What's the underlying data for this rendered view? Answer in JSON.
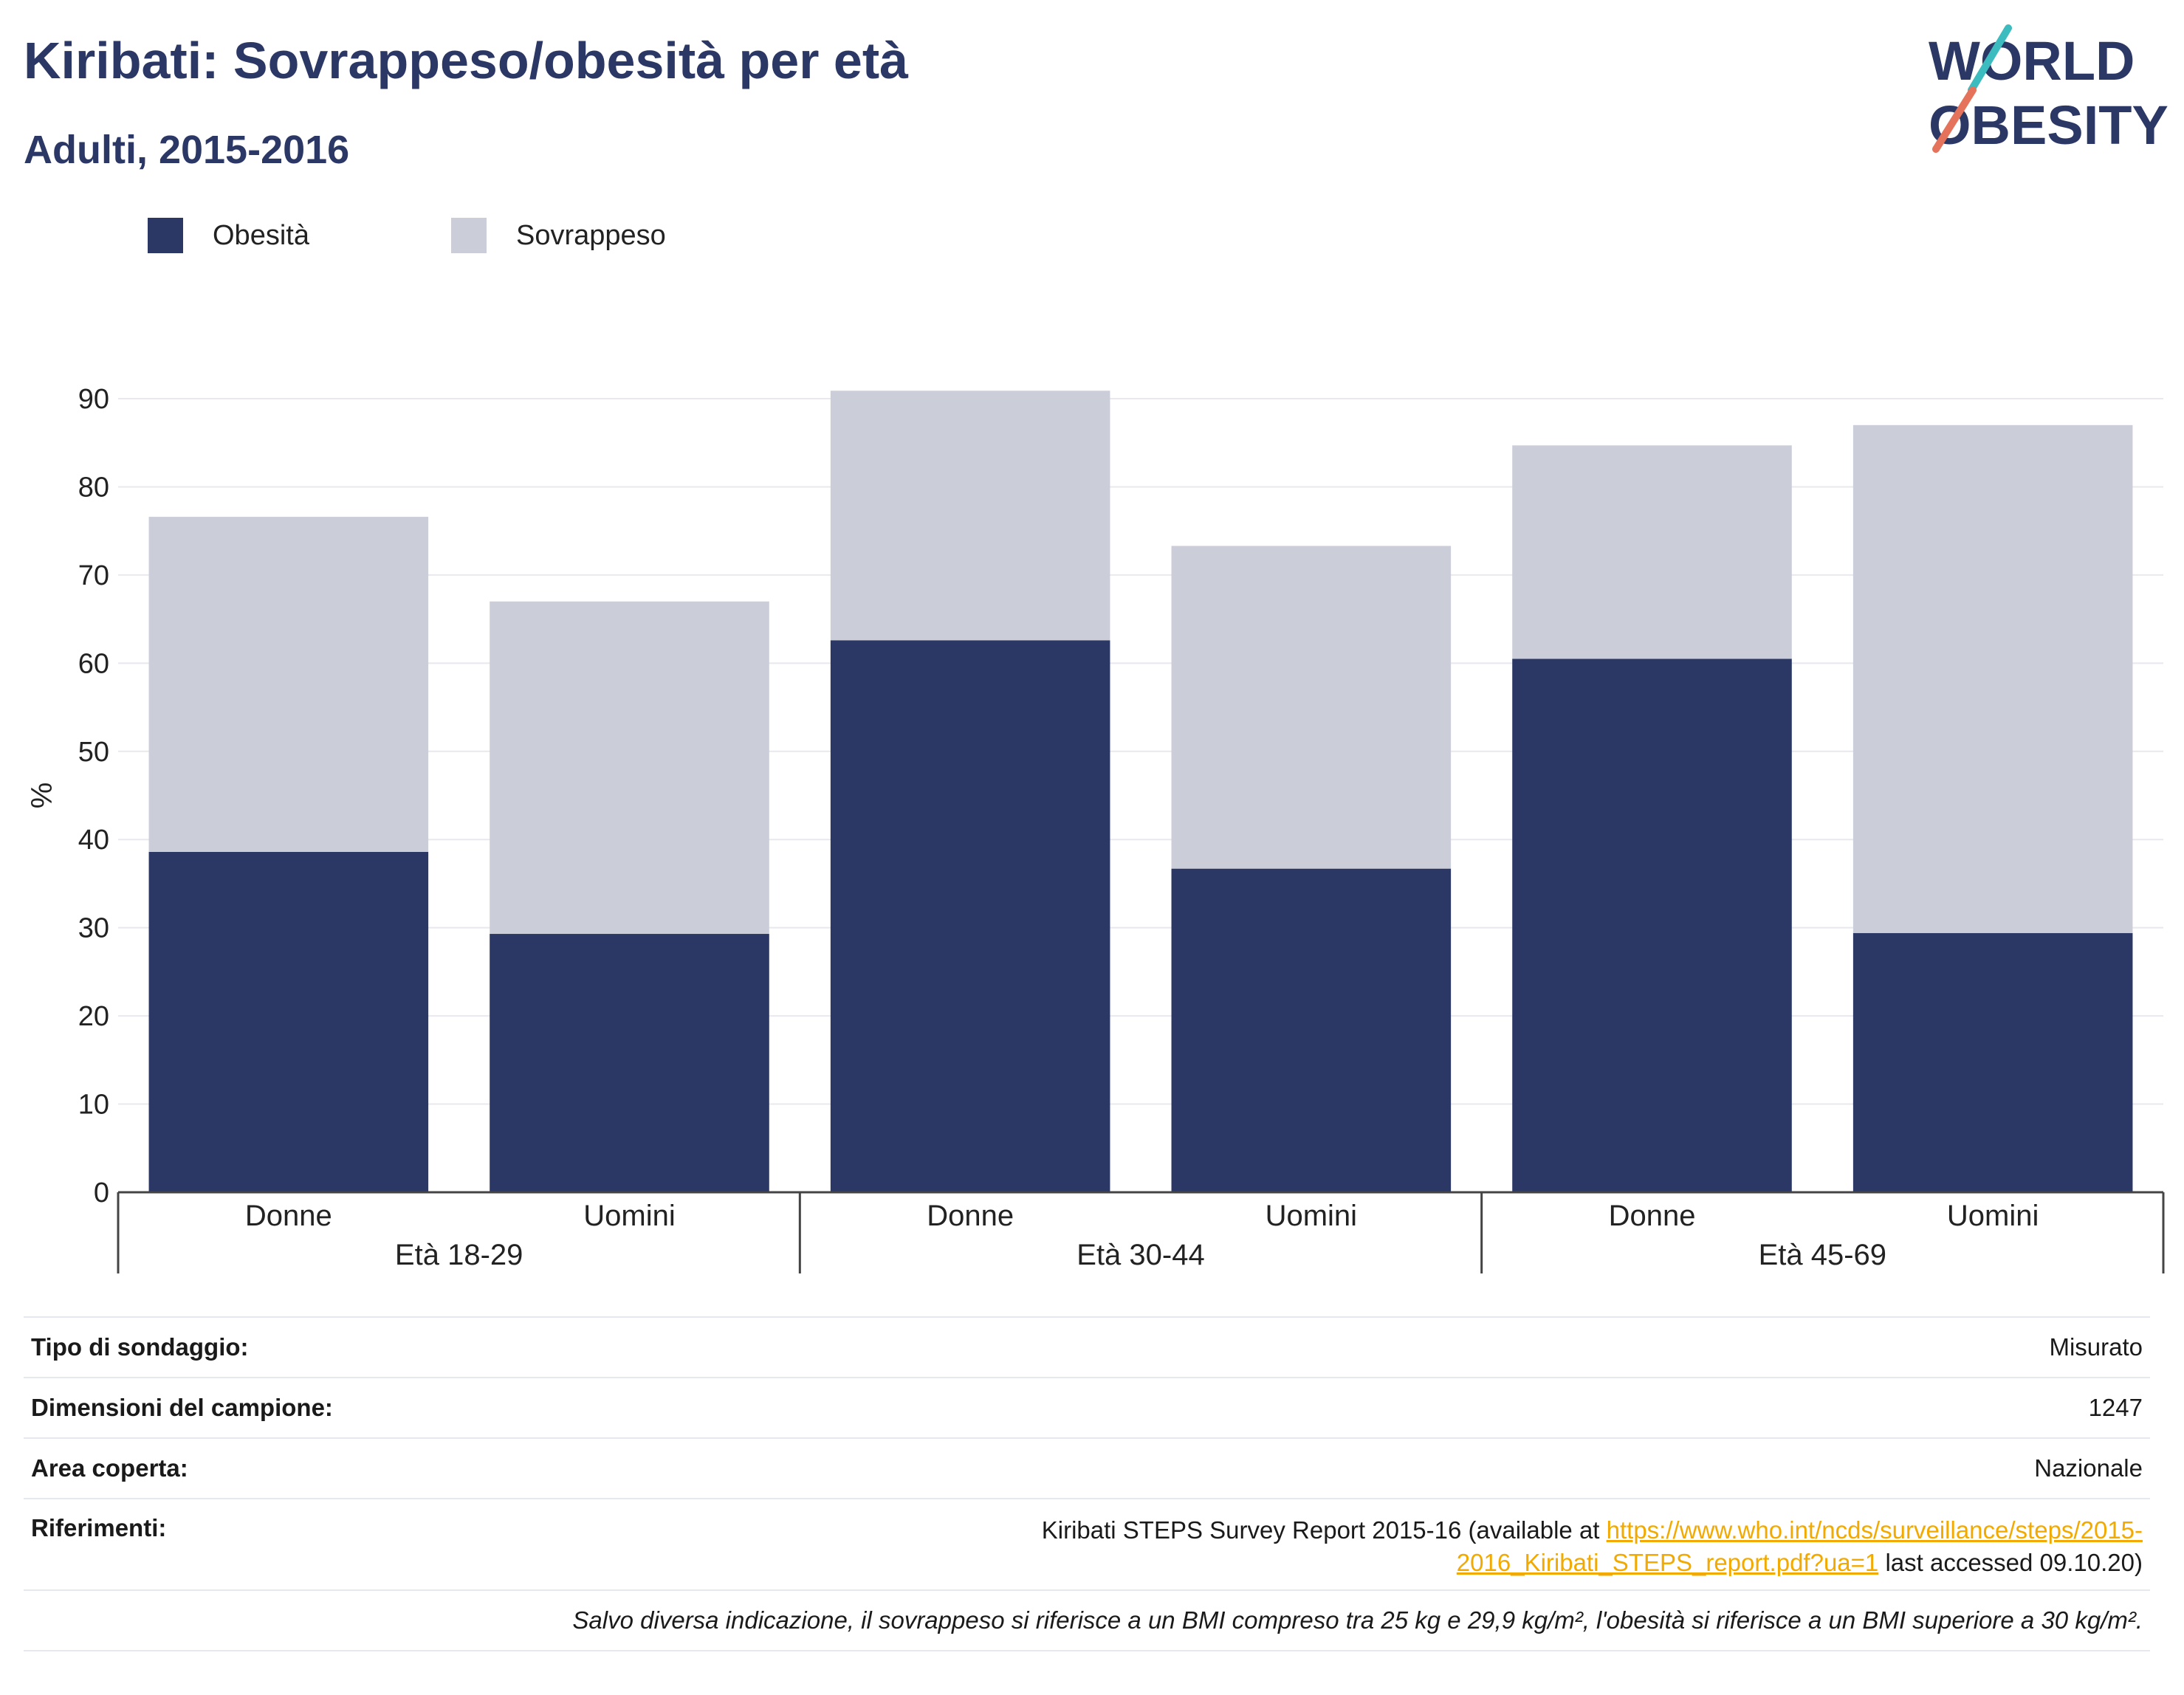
{
  "title": "Kiribati: Sovrappeso/obesità per età",
  "subtitle": "Adulti, 2015-2016",
  "logo": {
    "line1": "WORLD",
    "line2": "OBESITY"
  },
  "colors": {
    "obesity": "#2b3764",
    "overweight": "#cbcdd9",
    "title": "#2b3764",
    "link": "#f2a900"
  },
  "legend": [
    {
      "label": "Obesità",
      "color": "#2b3764"
    },
    {
      "label": "Sovrappeso",
      "color": "#cbcdd9"
    }
  ],
  "chart_data": {
    "type": "bar",
    "stacked": true,
    "ylabel": "%",
    "ylim": [
      0,
      90
    ],
    "yticks": [
      0,
      10,
      20,
      30,
      40,
      50,
      60,
      70,
      80,
      90
    ],
    "grid": true,
    "groups": [
      "Età 18-29",
      "Età 30-44",
      "Età 45-69"
    ],
    "categories": [
      "Donne",
      "Uomini",
      "Donne",
      "Uomini",
      "Donne",
      "Uomini"
    ],
    "series": [
      {
        "name": "Obesità",
        "values": [
          38.6,
          29.3,
          62.6,
          36.7,
          60.5,
          29.4
        ]
      },
      {
        "name": "Sovrappeso",
        "values": [
          38.0,
          37.7,
          28.3,
          36.6,
          24.2,
          57.6
        ]
      }
    ]
  },
  "info": [
    {
      "key": "Tipo di sondaggio:",
      "value": "Misurato"
    },
    {
      "key": "Dimensioni del campione:",
      "value": "1247"
    },
    {
      "key": "Area coperta:",
      "value": "Nazionale"
    }
  ],
  "references": {
    "key": "Riferimenti:",
    "prefix": "Kiribati STEPS Survey Report 2015-16 (available at ",
    "link1": "https://www.who.int/ncds/surveillance/steps/2015-",
    "link2": "2016_Kiribati_STEPS_report.pdf?ua=1",
    "suffix": " last accessed 09.10.20)"
  },
  "note": "Salvo diversa indicazione, il sovrappeso si riferisce a un BMI compreso tra 25 kg e 29,9 kg/m², l'obesità si riferisce a un BMI superiore a 30 kg/m²."
}
